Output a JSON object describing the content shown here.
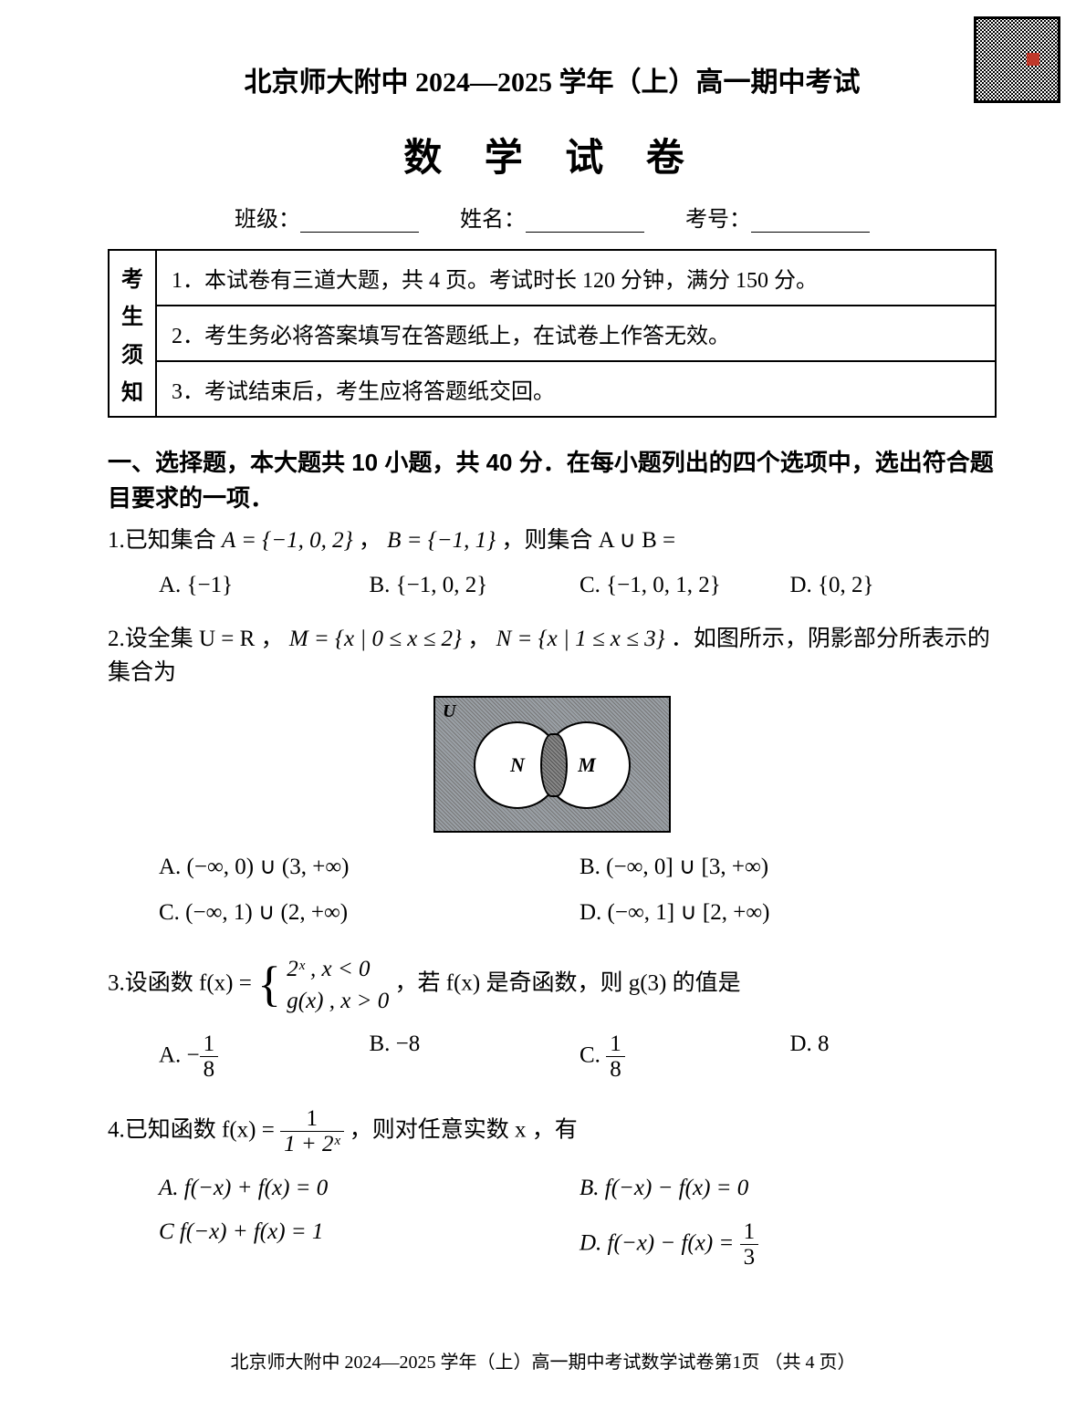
{
  "header": {
    "title": "北京师大附中 2024—2025 学年（上）高一期中考试",
    "doc_title": "数 学 试 卷",
    "fields": {
      "class_label": "班级：",
      "name_label": "姓名：",
      "id_label": "考号："
    }
  },
  "notice": {
    "side": [
      "考",
      "生",
      "须",
      "知"
    ],
    "items": [
      "1．本试卷有三道大题，共 4 页。考试时长 120 分钟，满分 150 分。",
      "2．考生务必将答案填写在答题纸上，在试卷上作答无效。",
      "3．考试结束后，考生应将答题纸交回。"
    ]
  },
  "section1": {
    "title": "一、选择题，本大题共 10 小题，共 40 分．在每小题列出的四个选项中，选出符合题目要求的一项．"
  },
  "q1": {
    "stem_pre": "1.已知集合 ",
    "A": "A = {−1, 0, 2}",
    "sep": "，",
    "B": "B = {−1, 1}",
    "stem_post": "，则集合 A ∪ B =",
    "choices": {
      "A": "A. {−1}",
      "B": "B. {−1, 0, 2}",
      "C": "C. {−1, 0, 1, 2}",
      "D": "D. {0, 2}"
    }
  },
  "q2": {
    "stem_pre": "2.设全集 U = R ，",
    "M": "M = {x | 0 ≤ x ≤ 2}",
    "sep": "，",
    "N": "N = {x | 1 ≤ x ≤ 3}",
    "stem_post": "．如图所示，阴影部分所表示的集合为",
    "venn": {
      "U": "U",
      "left": "N",
      "right": "M"
    },
    "choices": {
      "A": "A. (−∞, 0) ∪ (3, +∞)",
      "B": "B. (−∞, 0] ∪ [3, +∞)",
      "C": "C. (−∞, 1) ∪ (2, +∞)",
      "D": "D. (−∞, 1] ∪ [2, +∞)"
    }
  },
  "q3": {
    "stem_pre": "3.设函数 f(x) = ",
    "row1": "2ˣ , x < 0",
    "row2": "g(x) , x > 0",
    "stem_post": "，若 f(x) 是奇函数，则 g(3) 的值是",
    "choices": {
      "A_pre": "A. −",
      "A_num": "1",
      "A_den": "8",
      "B": "B. −8",
      "C_pre": "C. ",
      "C_num": "1",
      "C_den": "8",
      "D": "D. 8"
    }
  },
  "q4": {
    "stem_pre": "4.已知函数 f(x) = ",
    "num": "1",
    "den": "1 + 2ˣ",
    "stem_post": " ，则对任意实数 x ，有",
    "choices": {
      "A": "A. f(−x) + f(x) = 0",
      "B": "B. f(−x) − f(x) = 0",
      "C": "C  f(−x) + f(x) = 1",
      "D_pre": "D. f(−x) − f(x) = ",
      "D_num": "1",
      "D_den": "3"
    }
  },
  "footer": {
    "text": "北京师大附中 2024—2025 学年（上）高一期中考试数学试卷第1页 （共 4 页）"
  }
}
